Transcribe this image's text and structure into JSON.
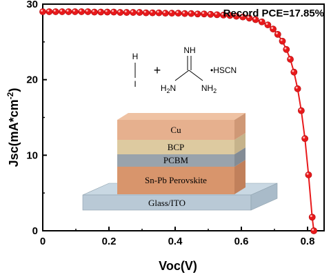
{
  "chart_data": {
    "type": "line",
    "title": "",
    "xlabel": "Voc(V)",
    "ylabel": "Jsc(mA*cm",
    "ylabel_superscript": "-2",
    "ylabel_close": ")",
    "xlim": [
      0,
      0.85
    ],
    "ylim": [
      0,
      30
    ],
    "xticks": [
      0,
      0.2,
      0.4,
      0.6,
      0.8
    ],
    "xtick_labels": [
      "0",
      "0.2",
      "0.4",
      "0.6",
      "0.8"
    ],
    "yticks": [
      0,
      10,
      20,
      30
    ],
    "ytick_labels": [
      "0",
      "10",
      "20",
      "30"
    ],
    "grid": false,
    "series": [
      {
        "color": "#e8191b",
        "x": [
          0.0,
          0.0195,
          0.039,
          0.0585,
          0.078,
          0.0975,
          0.117,
          0.1365,
          0.156,
          0.1755,
          0.195,
          0.2145,
          0.234,
          0.2535,
          0.273,
          0.2925,
          0.312,
          0.3315,
          0.351,
          0.3705,
          0.39,
          0.4095,
          0.429,
          0.4485,
          0.468,
          0.4875,
          0.507,
          0.5265,
          0.546,
          0.5655,
          0.585,
          0.6045,
          0.624,
          0.643,
          0.662,
          0.68,
          0.696,
          0.71,
          0.724,
          0.736,
          0.748,
          0.759,
          0.77,
          0.781,
          0.792,
          0.803,
          0.814,
          0.819
        ],
        "y": [
          29.0,
          29.0,
          29.0,
          29.0,
          29.0,
          29.0,
          29.0,
          29.0,
          28.95,
          28.95,
          28.95,
          28.95,
          28.9,
          28.9,
          28.9,
          28.9,
          28.85,
          28.85,
          28.85,
          28.8,
          28.8,
          28.8,
          28.75,
          28.75,
          28.7,
          28.7,
          28.65,
          28.6,
          28.55,
          28.5,
          28.4,
          28.3,
          28.15,
          27.95,
          27.65,
          27.25,
          26.7,
          26.0,
          25.1,
          24.0,
          22.7,
          21.0,
          18.8,
          15.9,
          12.2,
          7.4,
          1.8,
          0.0
        ]
      }
    ],
    "annotations": [
      {
        "text": "Record PCE=17.85%",
        "position": "top-right"
      }
    ]
  },
  "inset": {
    "chemicals": {
      "hi_top": "H",
      "hi_bottom": "I",
      "plus": "+",
      "nh": "NH",
      "h2n": "H",
      "h2n_sub": "2",
      "h2n_tail": "N",
      "nh2": "NH",
      "nh2_sub": "2",
      "hscn": "•HSCN"
    },
    "layers": [
      "Cu",
      "BCP",
      "PCBM",
      "Sn-Pb Perovskite",
      "Glass/ITO"
    ],
    "colors": {
      "cu": "#e6b08e",
      "bcp": "#ddcaa0",
      "pcbm": "#99a3ac",
      "perovskite": "#d8956c",
      "glass": "#b9c9d6"
    }
  }
}
